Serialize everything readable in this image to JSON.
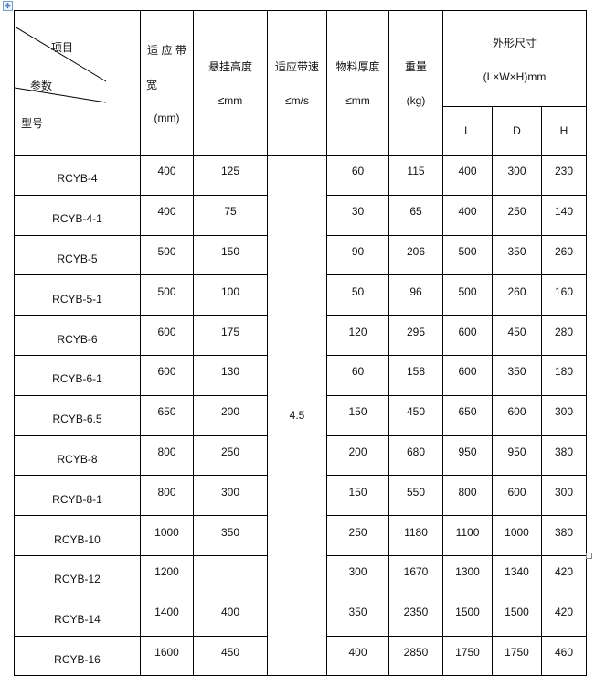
{
  "header": {
    "corner": {
      "item": "项目",
      "param": "参数",
      "model": "型号"
    },
    "belt_width": [
      "适 应 带",
      "宽",
      "(mm)"
    ],
    "hang_height": [
      "悬挂高度",
      "≤mm"
    ],
    "belt_speed": [
      "适应带速",
      "≤m/s"
    ],
    "thickness": [
      "物料厚度",
      "≤mm"
    ],
    "weight": [
      "重量",
      "(kg)"
    ],
    "dimensions": [
      "外形尺寸",
      "(L×W×H)mm"
    ],
    "dim_cols": [
      "L",
      "D",
      "H"
    ]
  },
  "speed_value": "4.5",
  "rows": [
    {
      "model": "RCYB-4",
      "width": "400",
      "height": "125",
      "thick": "60",
      "weight": "115",
      "L": "400",
      "D": "300",
      "H": "230"
    },
    {
      "model": "RCYB-4-1",
      "width": "400",
      "height": "75",
      "thick": "30",
      "weight": "65",
      "L": "400",
      "D": "250",
      "H": "140"
    },
    {
      "model": "RCYB-5",
      "width": "500",
      "height": "150",
      "thick": "90",
      "weight": "206",
      "L": "500",
      "D": "350",
      "H": "260"
    },
    {
      "model": "RCYB-5-1",
      "width": "500",
      "height": "100",
      "thick": "50",
      "weight": "96",
      "L": "500",
      "D": "260",
      "H": "160"
    },
    {
      "model": "RCYB-6",
      "width": "600",
      "height": "175",
      "thick": "120",
      "weight": "295",
      "L": "600",
      "D": "450",
      "H": "280"
    },
    {
      "model": "RCYB-6-1",
      "width": "600",
      "height": "130",
      "thick": "60",
      "weight": "158",
      "L": "600",
      "D": "350",
      "H": "180"
    },
    {
      "model": "RCYB-6.5",
      "width": "650",
      "height": "200",
      "thick": "150",
      "weight": "450",
      "L": "650",
      "D": "600",
      "H": "300"
    },
    {
      "model": "RCYB-8",
      "width": "800",
      "height": "250",
      "thick": "200",
      "weight": "680",
      "L": "950",
      "D": "950",
      "H": "380"
    },
    {
      "model": "RCYB-8-1",
      "width": "800",
      "height": "300",
      "thick": "150",
      "weight": "550",
      "L": "800",
      "D": "600",
      "H": "300"
    },
    {
      "model": "RCYB-10",
      "width": "1000",
      "height": "350",
      "thick": "250",
      "weight": "1180",
      "L": "1100",
      "D": "1000",
      "H": "380"
    },
    {
      "model": "RCYB-12",
      "width": "1200",
      "height": "",
      "thick": "300",
      "weight": "1670",
      "L": "1300",
      "D": "1340",
      "H": "420"
    },
    {
      "model": "RCYB-14",
      "width": "1400",
      "height": "400",
      "thick": "350",
      "weight": "2350",
      "L": "1500",
      "D": "1500",
      "H": "420"
    },
    {
      "model": "RCYB-16",
      "width": "1600",
      "height": "450",
      "thick": "400",
      "weight": "2850",
      "L": "1750",
      "D": "1750",
      "H": "460"
    }
  ]
}
